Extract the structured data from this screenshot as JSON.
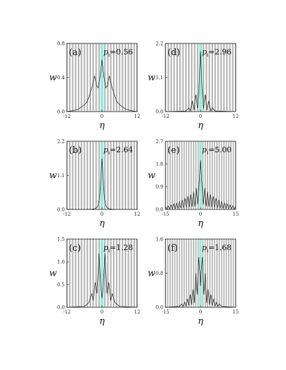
{
  "chart_data": [
    {
      "panel": "(a)",
      "annotation_var": "p",
      "annotation_sub": "i",
      "annotation_value": "=0.56",
      "type": "line",
      "xlabel": "η",
      "ylabel": "w",
      "xlim": [
        -12,
        12
      ],
      "ylim": [
        0,
        0.8
      ],
      "xticks": [
        "-12",
        "0",
        "12"
      ],
      "yticks": [
        "0.0",
        "0.4",
        "0.8"
      ],
      "x": [
        -12,
        -10,
        -8,
        -6,
        -5,
        -4,
        -3.3,
        -2.5,
        -1.8,
        -1.3,
        -0.6,
        0,
        0.6,
        1.3,
        1.8,
        2.5,
        3.3,
        4,
        5,
        6,
        8,
        10,
        12
      ],
      "y": [
        0.0,
        0.01,
        0.03,
        0.08,
        0.12,
        0.22,
        0.3,
        0.42,
        0.3,
        0.28,
        0.42,
        0.61,
        0.42,
        0.28,
        0.3,
        0.42,
        0.3,
        0.22,
        0.12,
        0.08,
        0.03,
        0.01,
        0.0
      ]
    },
    {
      "panel": "(b)",
      "annotation_var": "p",
      "annotation_sub": "i",
      "annotation_value": "=2.64",
      "type": "line",
      "xlabel": "η",
      "ylabel": "w",
      "xlim": [
        -12,
        12
      ],
      "ylim": [
        0,
        2.2
      ],
      "xticks": [
        "-12",
        "0",
        "12"
      ],
      "yticks": [
        "0.0",
        "1.1",
        "2.2"
      ],
      "x": [
        -12,
        -4,
        -2.5,
        -1.5,
        -0.8,
        -0.4,
        0,
        0.4,
        0.8,
        1.5,
        2.5,
        4,
        12
      ],
      "y": [
        0.0,
        0.0,
        0.02,
        0.08,
        0.35,
        1.0,
        1.65,
        1.0,
        0.35,
        0.08,
        0.02,
        0.0,
        0.0
      ]
    },
    {
      "panel": "(c)",
      "annotation_var": "p",
      "annotation_sub": "i",
      "annotation_value": "=1.28",
      "type": "line",
      "xlabel": "η",
      "ylabel": "w",
      "xlim": [
        -12,
        12
      ],
      "ylim": [
        0,
        1.5
      ],
      "xticks": [
        "-12",
        "0",
        "12"
      ],
      "yticks": [
        "0.0",
        "0.5",
        "1.0",
        "1.5"
      ],
      "x": [
        -12,
        -6,
        -4.5,
        -3.5,
        -3,
        -2.3,
        -1.7,
        -1,
        -0.4,
        0,
        0.4,
        1,
        1.7,
        2.3,
        3,
        3.5,
        4.5,
        6,
        12
      ],
      "y": [
        0.0,
        0.02,
        0.1,
        0.3,
        0.15,
        0.55,
        0.3,
        1.18,
        0.45,
        0.2,
        0.45,
        1.18,
        0.3,
        0.55,
        0.15,
        0.3,
        0.1,
        0.02,
        0.0
      ]
    },
    {
      "panel": "(d)",
      "annotation_var": "p",
      "annotation_sub": "i",
      "annotation_value": "=2.96",
      "type": "line",
      "xlabel": "η",
      "ylabel": "w",
      "xlim": [
        -12,
        12
      ],
      "ylim": [
        0,
        2.2
      ],
      "xticks": [
        "-12",
        "0",
        "12"
      ],
      "yticks": [
        "0.0",
        "1.1",
        "2.2"
      ],
      "x": [
        -12,
        -5,
        -4,
        -3.5,
        -2.8,
        -2.2,
        -1.6,
        -1,
        -0.5,
        0,
        0.5,
        1,
        1.6,
        2.2,
        2.8,
        3.5,
        4,
        5,
        12
      ],
      "y": [
        0.0,
        0.02,
        0.12,
        0.02,
        0.35,
        0.05,
        0.55,
        0.1,
        0.8,
        1.95,
        0.8,
        0.1,
        0.55,
        0.05,
        0.35,
        0.02,
        0.12,
        0.02,
        0.0
      ]
    },
    {
      "panel": "(e)",
      "annotation_var": "p",
      "annotation_sub": "i",
      "annotation_value": "=5.00",
      "type": "line",
      "xlabel": "η",
      "ylabel": "w",
      "xlim": [
        -15,
        15
      ],
      "ylim": [
        0,
        2.7
      ],
      "xticks": [
        "-15",
        "0",
        "15"
      ],
      "yticks": [
        "0.0",
        "0.9",
        "1.8",
        "2.7"
      ],
      "x": [
        -15,
        -14.4,
        -13.8,
        -13.2,
        -12.6,
        -12,
        -11.4,
        -10.8,
        -10.2,
        -9.6,
        -9,
        -8.4,
        -7.8,
        -7.2,
        -6.6,
        -6,
        -5.4,
        -4.8,
        -4.2,
        -3.6,
        -3,
        -2.4,
        -1.8,
        -1.2,
        -0.6,
        0,
        0.6,
        1.2,
        1.8,
        2.4,
        3,
        3.6,
        4.2,
        4.8,
        5.4,
        6,
        6.6,
        7.2,
        7.8,
        8.4,
        9,
        9.6,
        10.2,
        10.8,
        11.4,
        12,
        12.6,
        13.2,
        13.8,
        14.4,
        15
      ],
      "y": [
        0.12,
        0.02,
        0.15,
        0.02,
        0.18,
        0.03,
        0.22,
        0.03,
        0.26,
        0.04,
        0.32,
        0.05,
        0.38,
        0.06,
        0.45,
        0.07,
        0.52,
        0.08,
        0.6,
        0.1,
        0.7,
        0.12,
        0.85,
        0.2,
        1.0,
        1.95,
        1.0,
        0.2,
        0.85,
        0.12,
        0.7,
        0.1,
        0.6,
        0.08,
        0.52,
        0.07,
        0.45,
        0.06,
        0.38,
        0.05,
        0.32,
        0.04,
        0.26,
        0.03,
        0.22,
        0.03,
        0.18,
        0.02,
        0.15,
        0.02,
        0.12
      ]
    },
    {
      "panel": "(f)",
      "annotation_var": "p",
      "annotation_sub": "i",
      "annotation_value": "=1.68",
      "type": "line",
      "xlabel": "η",
      "ylabel": "w",
      "xlim": [
        -15,
        15
      ],
      "ylim": [
        0,
        1.6
      ],
      "xticks": [
        "-15",
        "0",
        "15"
      ],
      "yticks": [
        "0.0",
        "0.8",
        "1.6"
      ],
      "x": [
        -15,
        -9,
        -8,
        -7.4,
        -6.8,
        -6.2,
        -5.6,
        -5,
        -4.4,
        -3.8,
        -3.2,
        -2.6,
        -2,
        -1.4,
        -0.8,
        -0.3,
        0,
        0.3,
        0.8,
        1.4,
        2,
        2.6,
        3.2,
        3.8,
        4.4,
        5,
        5.6,
        6.2,
        6.8,
        7.4,
        8,
        9,
        15
      ],
      "y": [
        0.0,
        0.02,
        0.08,
        0.02,
        0.12,
        0.03,
        0.2,
        0.04,
        0.3,
        0.06,
        0.42,
        0.1,
        0.8,
        0.3,
        1.18,
        0.85,
        0.5,
        0.85,
        1.18,
        0.3,
        0.8,
        0.1,
        0.42,
        0.06,
        0.3,
        0.04,
        0.2,
        0.03,
        0.12,
        0.02,
        0.08,
        0.02,
        0.0
      ]
    }
  ],
  "colors": {
    "stripe": "#b4b4b4",
    "band": "#8ff0dc",
    "line": "#1a1a1a",
    "frame": "#1a1a1a"
  }
}
